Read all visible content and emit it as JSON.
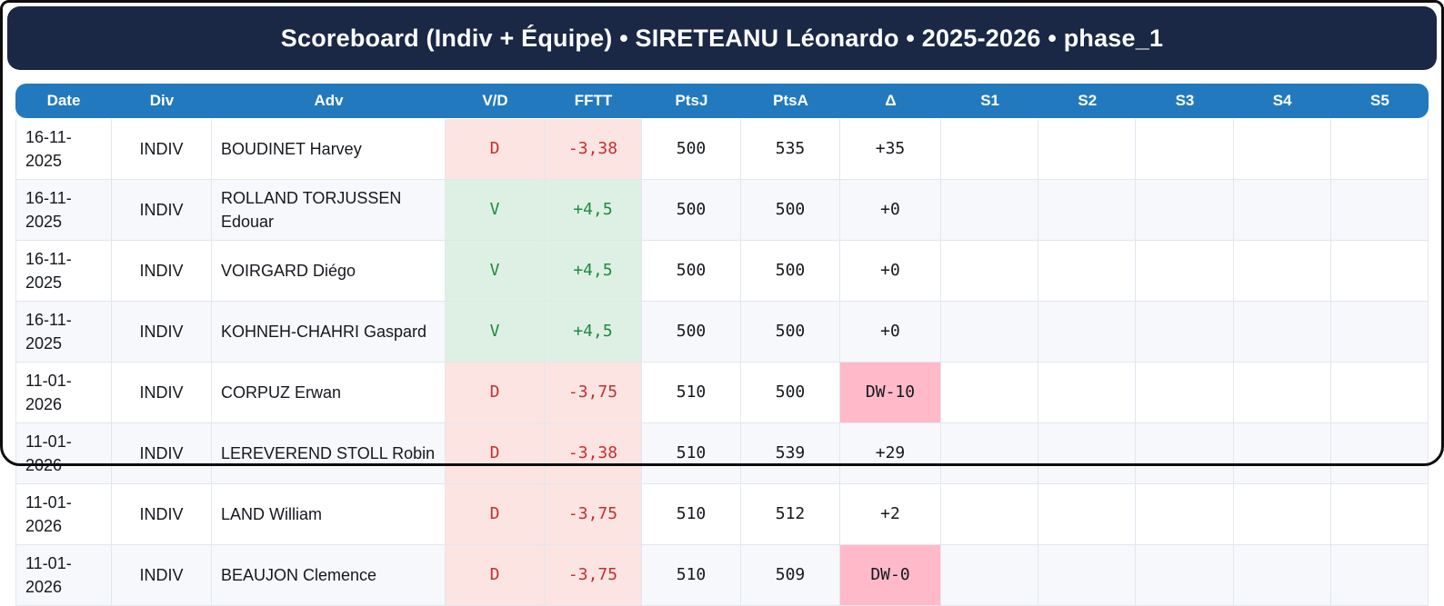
{
  "title": "Scoreboard (Indiv + Équipe) • SIRETEANU Léonardo • 2025-2026 • phase_1",
  "table": {
    "columns": [
      "Date",
      "Div",
      "Adv",
      "V/D",
      "FFTT",
      "PtsJ",
      "PtsA",
      "Δ",
      "S1",
      "S2",
      "S3",
      "S4",
      "S5"
    ],
    "rows": [
      {
        "date": "16-11-2025",
        "div": "INDIV",
        "adv": "BOUDINET Harvey",
        "vd": "D",
        "fftt": "-3,38",
        "ptsj": "500",
        "ptsa": "535",
        "delta": "+35",
        "s1": "",
        "s2": "",
        "s3": "",
        "s4": "",
        "s5": ""
      },
      {
        "date": "16-11-2025",
        "div": "INDIV",
        "adv": "ROLLAND TORJUSSEN Edouar",
        "vd": "V",
        "fftt": "+4,5",
        "ptsj": "500",
        "ptsa": "500",
        "delta": "+0",
        "s1": "",
        "s2": "",
        "s3": "",
        "s4": "",
        "s5": ""
      },
      {
        "date": "16-11-2025",
        "div": "INDIV",
        "adv": "VOIRGARD Diégo",
        "vd": "V",
        "fftt": "+4,5",
        "ptsj": "500",
        "ptsa": "500",
        "delta": "+0",
        "s1": "",
        "s2": "",
        "s3": "",
        "s4": "",
        "s5": ""
      },
      {
        "date": "16-11-2025",
        "div": "INDIV",
        "adv": "KOHNEH-CHAHRI Gaspard",
        "vd": "V",
        "fftt": "+4,5",
        "ptsj": "500",
        "ptsa": "500",
        "delta": "+0",
        "s1": "",
        "s2": "",
        "s3": "",
        "s4": "",
        "s5": ""
      },
      {
        "date": "11-01-2026",
        "div": "INDIV",
        "adv": "CORPUZ Erwan",
        "vd": "D",
        "fftt": "-3,75",
        "ptsj": "510",
        "ptsa": "500",
        "delta": "DW-10",
        "s1": "",
        "s2": "",
        "s3": "",
        "s4": "",
        "s5": ""
      },
      {
        "date": "11-01-2026",
        "div": "INDIV",
        "adv": "LEREVEREND STOLL Robin",
        "vd": "D",
        "fftt": "-3,38",
        "ptsj": "510",
        "ptsa": "539",
        "delta": "+29",
        "s1": "",
        "s2": "",
        "s3": "",
        "s4": "",
        "s5": ""
      },
      {
        "date": "11-01-2026",
        "div": "INDIV",
        "adv": "LAND William",
        "vd": "D",
        "fftt": "-3,75",
        "ptsj": "510",
        "ptsa": "512",
        "delta": "+2",
        "s1": "",
        "s2": "",
        "s3": "",
        "s4": "",
        "s5": ""
      },
      {
        "date": "11-01-2026",
        "div": "INDIV",
        "adv": "BEAUJON Clemence",
        "vd": "D",
        "fftt": "-3,75",
        "ptsj": "510",
        "ptsa": "509",
        "delta": "DW-0",
        "s1": "",
        "s2": "",
        "s3": "",
        "s4": "",
        "s5": ""
      }
    ]
  },
  "colors": {
    "title_bg": "#1a2745",
    "header_bg": "#2279be",
    "win_bg": "#def0e4",
    "win_text": "#1e8b3f",
    "lose_bg": "#fce4e2",
    "lose_text": "#c23030",
    "dw_bg": "#ffb9c9",
    "alt_row_bg": "#f6f8fb",
    "grid_line": "#e2e7ee"
  }
}
